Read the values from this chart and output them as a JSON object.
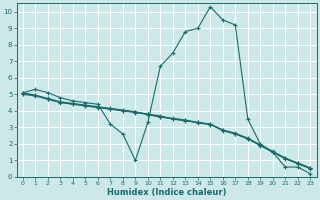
{
  "xlabel": "Humidex (Indice chaleur)",
  "xlim": [
    -0.5,
    23.5
  ],
  "ylim": [
    0,
    10.5
  ],
  "xticks": [
    0,
    1,
    2,
    3,
    4,
    5,
    6,
    7,
    8,
    9,
    10,
    11,
    12,
    13,
    14,
    15,
    16,
    17,
    18,
    19,
    20,
    21,
    22,
    23
  ],
  "yticks": [
    0,
    1,
    2,
    3,
    4,
    5,
    6,
    7,
    8,
    9,
    10
  ],
  "bg_color": "#cce8e8",
  "grid_color": "#ffffff",
  "line_color": "#1a6b6b",
  "lines": [
    {
      "x": [
        0,
        1,
        2,
        3,
        4,
        5,
        6,
        7,
        8,
        9,
        10,
        11,
        12,
        13,
        14,
        15,
        16,
        17,
        18,
        19,
        20,
        21,
        22,
        23
      ],
      "y": [
        5.1,
        5.3,
        5.1,
        4.8,
        4.6,
        4.5,
        4.4,
        3.2,
        2.6,
        1.0,
        3.3,
        6.7,
        7.5,
        8.8,
        9.0,
        10.3,
        9.5,
        9.2,
        3.5,
        2.0,
        1.5,
        0.6,
        0.6,
        0.2
      ],
      "marker": true
    },
    {
      "x": [
        0,
        1,
        2,
        3,
        4,
        5,
        6,
        7,
        8,
        9,
        10,
        11,
        12,
        13,
        14,
        15,
        16,
        17,
        18,
        19,
        20,
        21,
        22,
        23
      ],
      "y": [
        5.0,
        4.9,
        4.7,
        4.5,
        4.4,
        4.3,
        4.2,
        4.1,
        4.0,
        3.9,
        3.8,
        3.7,
        3.5,
        3.4,
        3.3,
        3.2,
        2.8,
        2.6,
        2.3,
        1.9,
        1.5,
        1.1,
        0.8,
        0.5
      ],
      "marker": true
    },
    {
      "x": [
        0,
        1,
        2,
        3,
        4,
        5,
        6,
        7,
        8,
        9,
        10,
        11,
        12,
        13,
        14,
        15,
        16,
        17,
        18,
        19,
        20,
        21,
        22,
        23
      ],
      "y": [
        5.1,
        4.95,
        4.75,
        4.55,
        4.45,
        4.35,
        4.25,
        4.15,
        4.05,
        3.95,
        3.8,
        3.65,
        3.55,
        3.45,
        3.3,
        3.2,
        2.85,
        2.65,
        2.35,
        1.95,
        1.55,
        1.15,
        0.85,
        0.55
      ],
      "marker": true
    },
    {
      "x": [
        0,
        1,
        2,
        3,
        4,
        5,
        6,
        7,
        8,
        9,
        10,
        11,
        12,
        13,
        14,
        15,
        16,
        17,
        18,
        19,
        20,
        21,
        22,
        23
      ],
      "y": [
        5.05,
        4.95,
        4.72,
        4.52,
        4.42,
        4.32,
        4.22,
        4.12,
        4.02,
        3.92,
        3.77,
        3.62,
        3.52,
        3.42,
        3.27,
        3.17,
        2.82,
        2.62,
        2.32,
        1.92,
        1.52,
        1.12,
        0.82,
        0.52
      ],
      "marker": true
    }
  ]
}
